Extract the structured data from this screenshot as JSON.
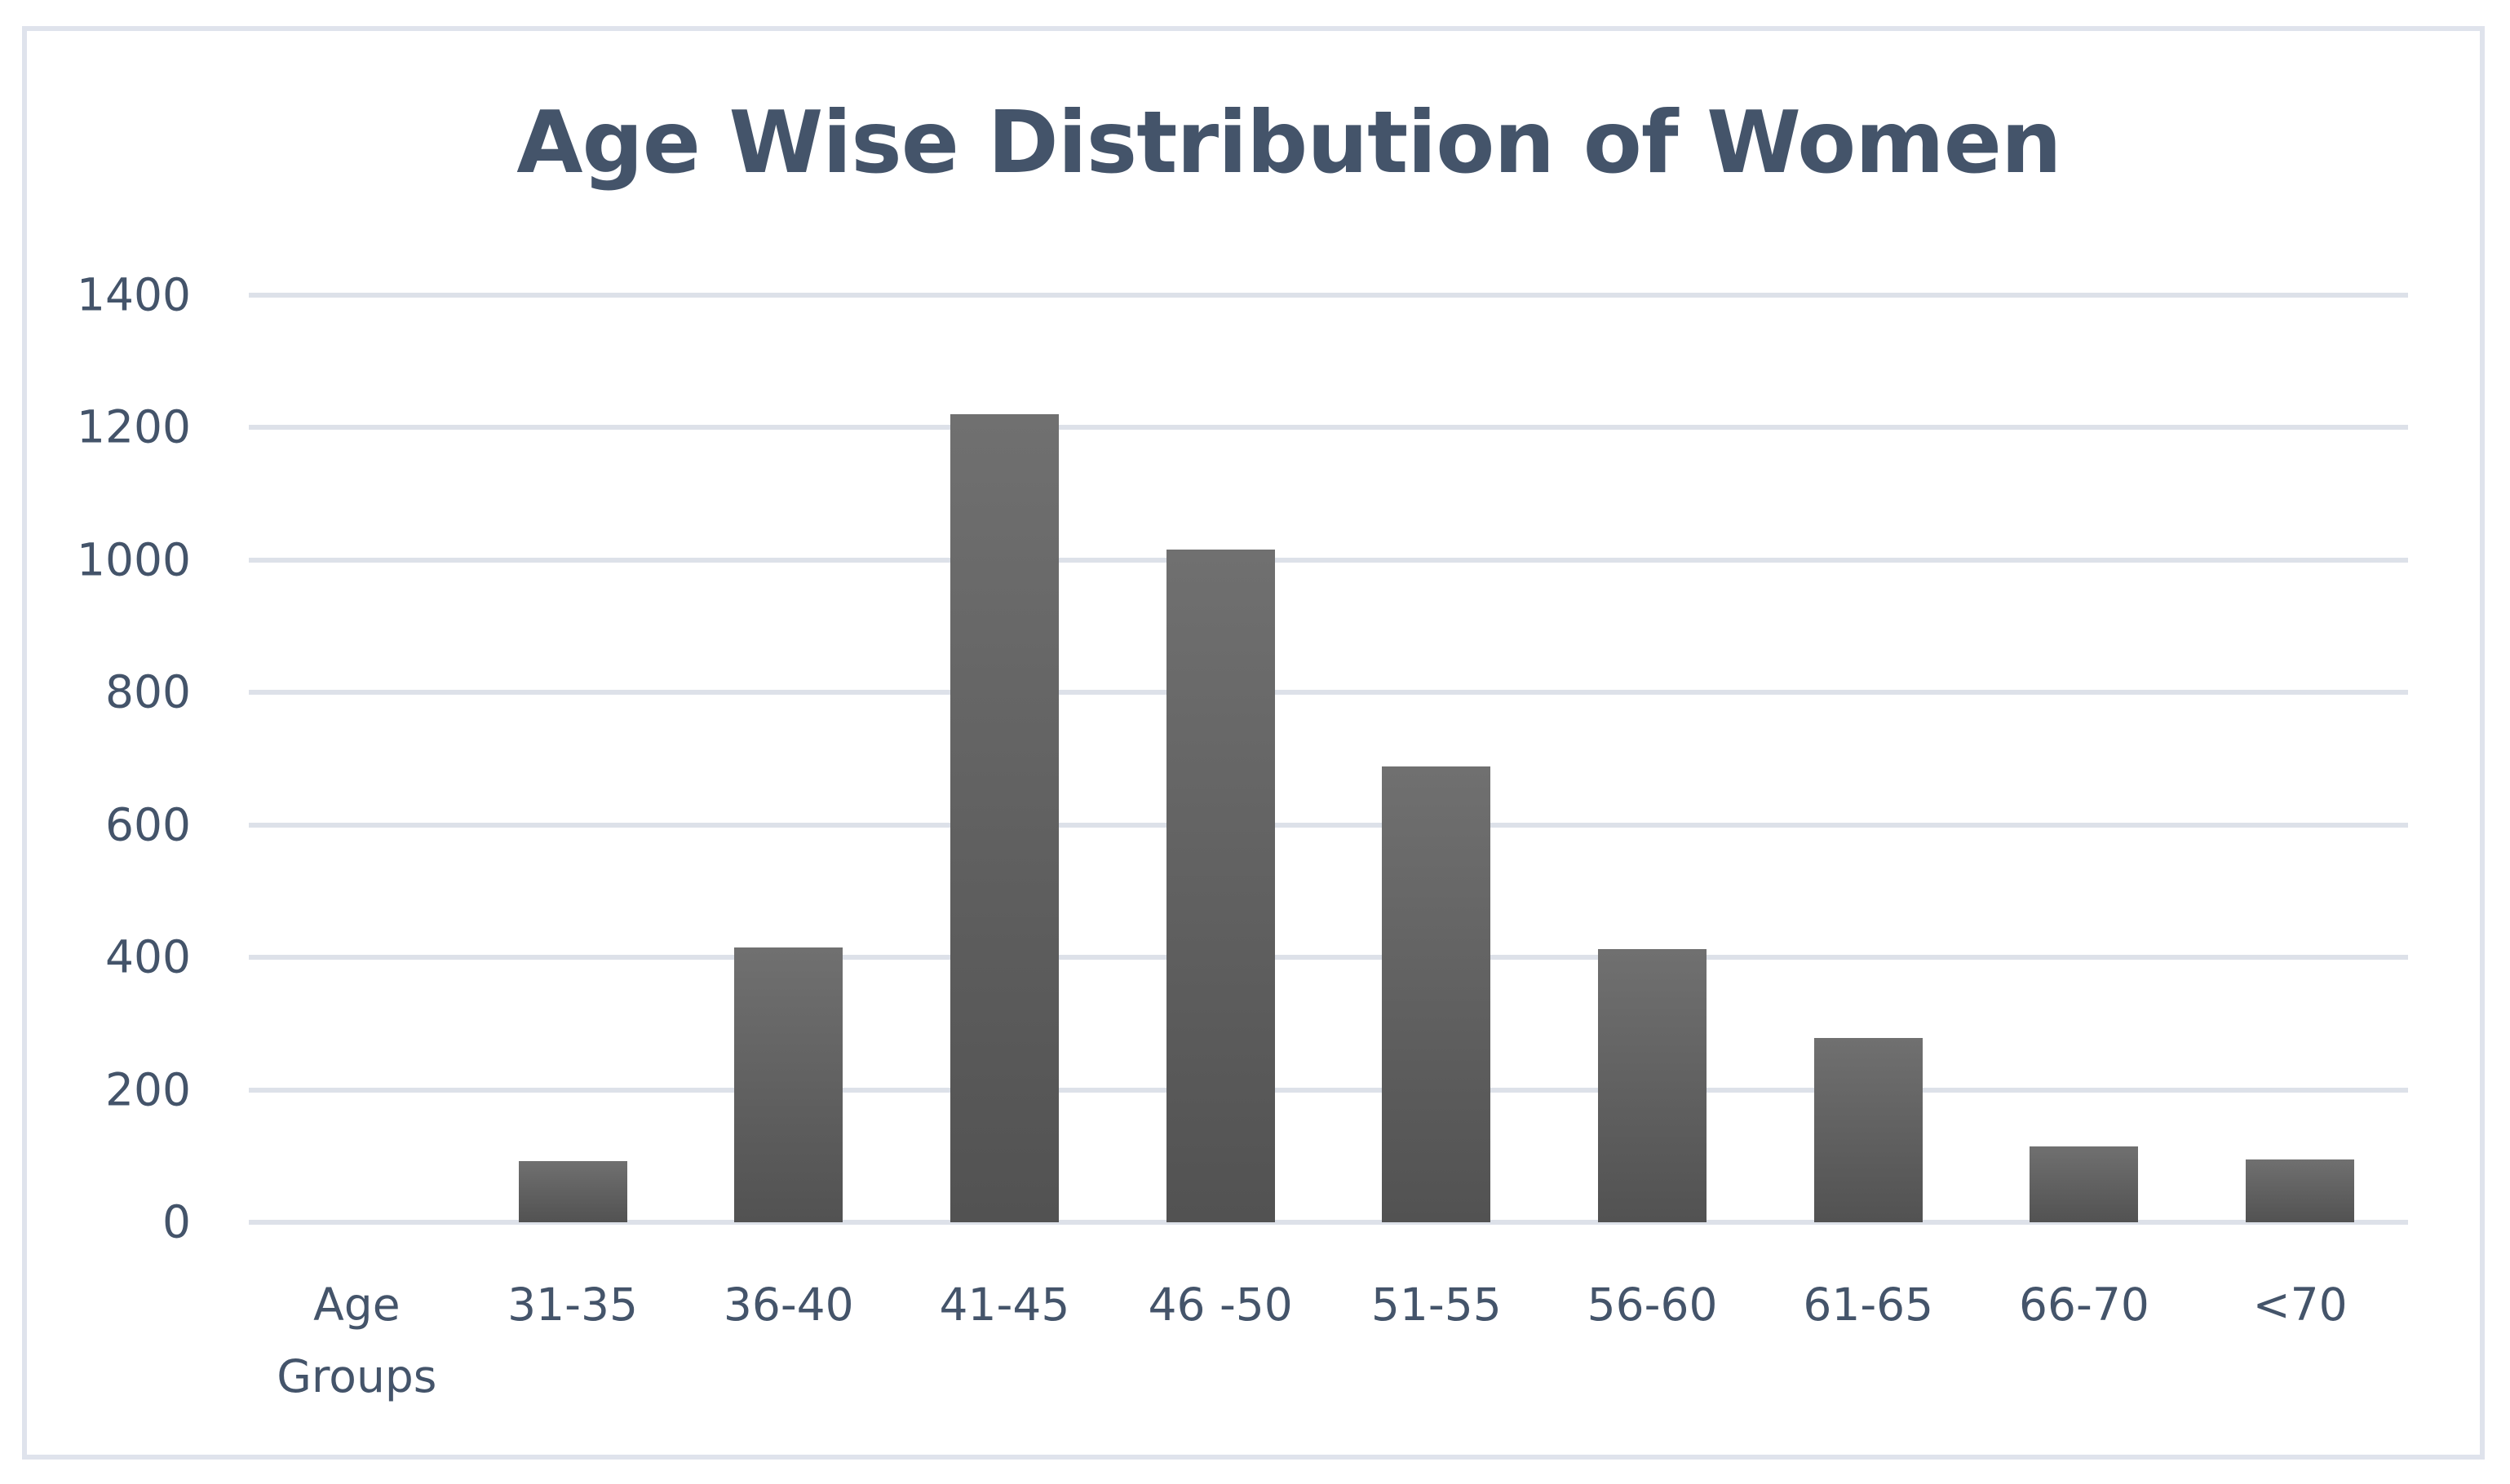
{
  "title": "Age Wise Distribution of Women",
  "chart_data": {
    "type": "bar",
    "title": "Age Wise Distribution of Women",
    "categories": [
      "Age Groups",
      "31-35",
      "36-40",
      "41-45",
      "46 -50",
      "51-55",
      "56-60",
      "61-65",
      "66-70",
      "<70"
    ],
    "values": [
      null,
      92,
      415,
      1220,
      1016,
      688,
      412,
      278,
      115,
      95
    ],
    "xlabel": "",
    "ylabel": "",
    "ylim": [
      0,
      1400
    ],
    "yticks": [
      0,
      200,
      400,
      600,
      800,
      1000,
      1200,
      1400
    ],
    "grid": true,
    "legend": false,
    "colors": {
      "bar_gradient_top": "#707070",
      "bar_gradient_bottom": "#525252",
      "gridline": "#dde1e9",
      "frame_border": "#dfe3ec",
      "text": "#44546a",
      "background": "#ffffff"
    }
  }
}
